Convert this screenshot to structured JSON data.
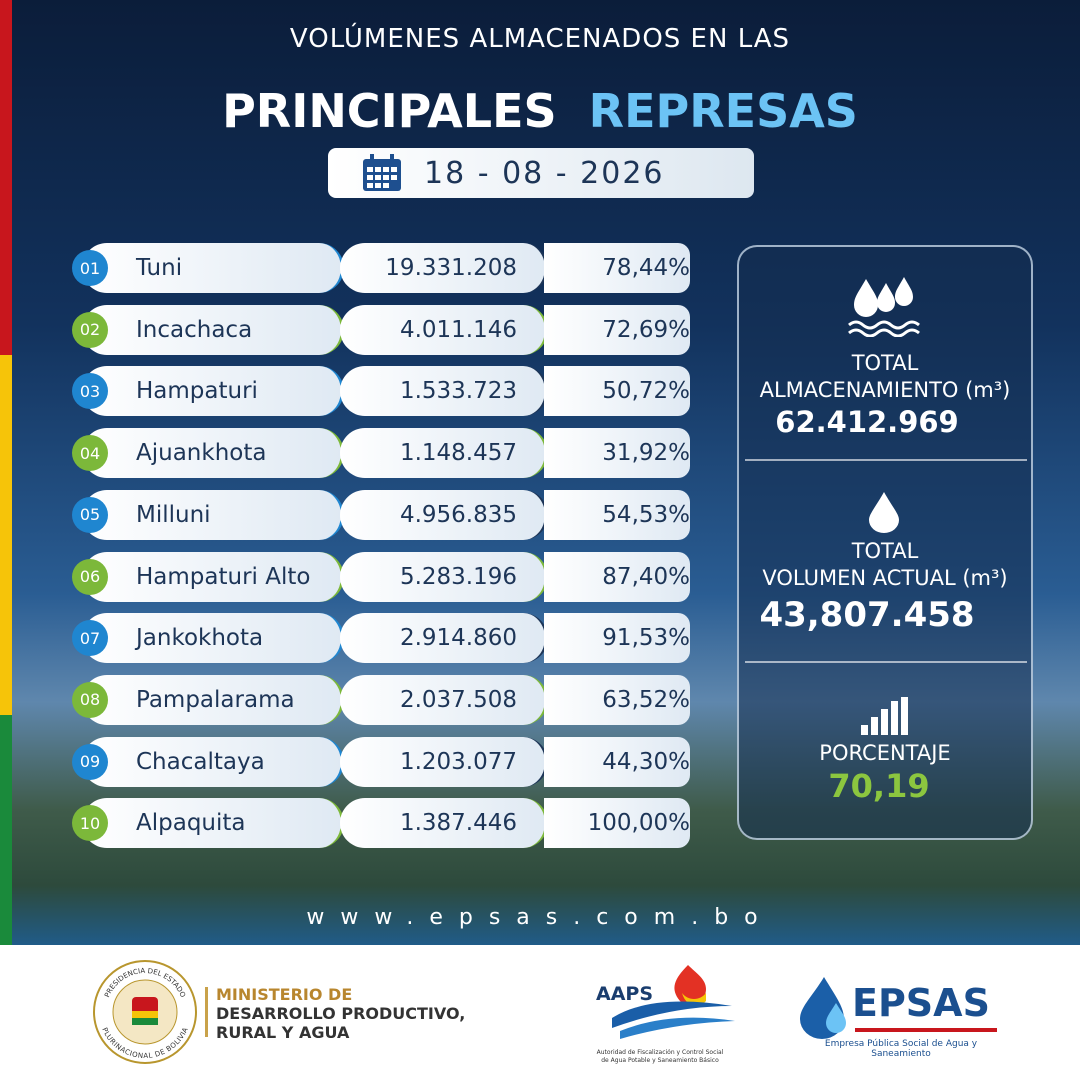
{
  "header": {
    "line1": "VOLÚMENES ALMACENADOS EN LAS",
    "word1": "PRINCIPALES",
    "word2": "REPRESAS",
    "date": "18 - 08 - 2026"
  },
  "table": {
    "rows": [
      [
        "01",
        "Tuni",
        "19.331.208",
        "78,44%"
      ],
      [
        "02",
        "Incachaca",
        "4.011.146",
        "72,69%"
      ],
      [
        "03",
        "Hampaturi",
        "1.533.723",
        "50,72%"
      ],
      [
        "04",
        "Ajuankhota",
        "1.148.457",
        "31,92%"
      ],
      [
        "05",
        "Milluni",
        "4.956.835",
        "54,53%"
      ],
      [
        "06",
        "Hampaturi Alto",
        "5.283.196",
        "87,40%"
      ],
      [
        "07",
        "Jankokhota",
        "2.914.860",
        "91,53%"
      ],
      [
        "08",
        "Pampalarama",
        "2.037.508",
        "63,52%"
      ],
      [
        "09",
        "Chacaltaya",
        "1.203.077",
        "44,30%"
      ],
      [
        "10",
        "Alpaquita",
        "1.387.446",
        "100,00%"
      ]
    ]
  },
  "summary": {
    "storage_label1": "TOTAL",
    "storage_label2": "ALMACENAMIENTO (m³)",
    "storage_value": "62.412.969",
    "volume_label1": "TOTAL",
    "volume_label2": "VOLUMEN ACTUAL (m³)",
    "volume_value": "43,807.458",
    "percent_label": "PORCENTAJE",
    "percent_value": "70,19"
  },
  "footer": {
    "website": "www.epsas.com.bo",
    "seal_top": "PRESIDENCIA DEL ESTADO",
    "seal_bottom": "PLURINACIONAL DE BOLIVIA",
    "ministry1": "MINISTERIO DE",
    "ministry2": "DESARROLLO PRODUCTIVO,",
    "ministry3": "RURAL Y AGUA",
    "aaps": "AAPS",
    "aaps_sub1": "Autoridad de Fiscalización y Control Social",
    "aaps_sub2": "de Agua Potable y Saneamiento Básico",
    "epsas": "EPSAS",
    "epsas_sub": "Empresa Pública Social de Agua y Saneamiento"
  }
}
